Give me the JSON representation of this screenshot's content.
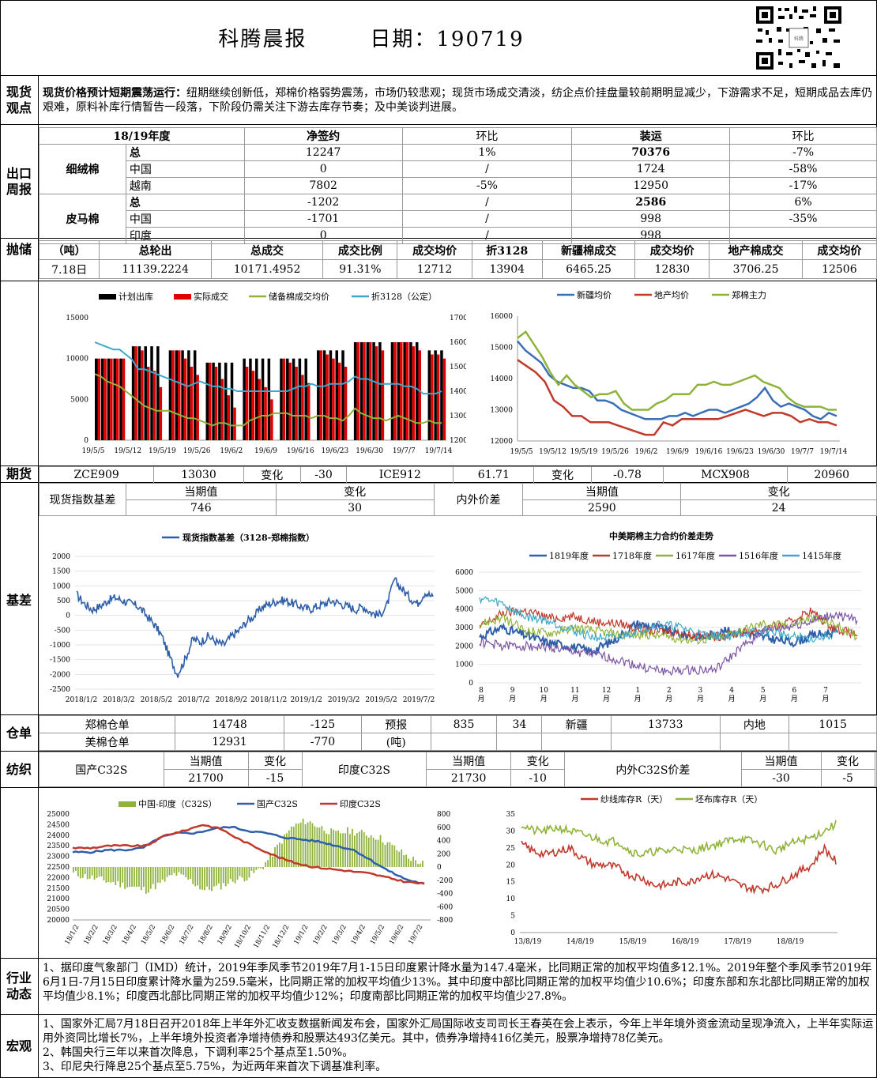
{
  "header": {
    "title": "科腾晨报",
    "date": "日期：190719"
  },
  "sections": {
    "view": "现货\n观点",
    "export": "出口\n周报",
    "reserve": "抛储",
    "futures": "期货",
    "basis": "基差",
    "warrant": "仓单",
    "textile": "纺织",
    "industry": "行业\n动态",
    "macro": "宏观"
  },
  "view": {
    "bold": "现货价格预计短期震荡运行：",
    "text": "纽期继续创新低，郑棉价格弱势震荡，市场仍较悲观；现货市场成交清淡，纺企点价挂盘量较前期明显减少，下游需求不足，短期成品去库仍艰难，原料补库行情暂告一段落，下阶段仍需关注下游去库存节奏；及中美谈判进展。"
  },
  "export": {
    "header": [
      "18/19年度",
      "净签约",
      "环比",
      "装运",
      "环比"
    ],
    "groups": [
      {
        "name": "细绒棉",
        "rows": [
          [
            "总",
            "12247",
            "1%",
            "70376",
            "-7%"
          ],
          [
            "中国",
            "0",
            "/",
            "1724",
            "-58%"
          ],
          [
            "越南",
            "7802",
            "-5%",
            "12950",
            "-17%"
          ]
        ]
      },
      {
        "name": "皮马棉",
        "rows": [
          [
            "总",
            "-1202",
            "/",
            "2586",
            "6%"
          ],
          [
            "中国",
            "-1701",
            "/",
            "998",
            "-35%"
          ],
          [
            "印度",
            "0",
            "/",
            "998",
            ""
          ]
        ]
      }
    ]
  },
  "reserve": {
    "header": [
      "（吨）",
      "总轮出",
      "总成交",
      "成交比例",
      "成交均价",
      "折3128",
      "新疆棉成交",
      "成交均价",
      "地产棉成交",
      "成交均价"
    ],
    "row": [
      "7.18日",
      "11139.2224",
      "10171.4952",
      "91.31%",
      "12712",
      "13904",
      "6465.25",
      "12830",
      "3706.25",
      "12506"
    ]
  },
  "futures": {
    "row1": [
      "ZCE909",
      "13030",
      "变化",
      "-30",
      "ICE912",
      "61.71",
      "变化",
      "-0.78",
      "MCX908",
      "20960"
    ],
    "basis_label": "现货指数基差",
    "cur": "当期值",
    "chg": "变化",
    "basis_val": "746",
    "basis_chg": "30",
    "spread_label": "内外价差",
    "spread_val": "2590",
    "spread_chg": "24"
  },
  "warrant": {
    "r1": [
      "郑棉仓单",
      "14748",
      "-125",
      "预报",
      "835",
      "34",
      "新疆",
      "13733",
      "内地",
      "1015"
    ],
    "r2": [
      "美棉仓单",
      "12931",
      "-770",
      "(吨)"
    ]
  },
  "textile": {
    "dom": "国产C32S",
    "cur": "当期值",
    "chg": "变化",
    "dom_val": "21700",
    "dom_chg": "-15",
    "ind": "印度C32S",
    "ind_val": "21730",
    "ind_chg": "-10",
    "spread": "内外C32S价差",
    "sp_val": "-30",
    "sp_chg": "-5"
  },
  "industry": "1、据印度气象部门（IMD）统计，2019年季风季节2019年7月1-15日印度累计降水量为147.4毫米，比同期正常的加权平均值多12.1%。2019年整个季风季节2019年6月1日-7月15日印度累计降水量为259.5毫米，比同期正常的加权平均值少13%。其中印度中部比同期正常的加权平均值少10.6%；印度东部和东北部比同期正常的加权平均值少8.1%；印度西北部比同期正常的加权平均值少12%；印度南部比同期正常的加权平均值少27.8%。",
  "macro": [
    "1、国家外汇局7月18日召开2018年上半年外汇收支数据新闻发布会，国家外汇局国际收支司司长王春英在会上表示，今年上半年境外资金流动呈现净流入，上半年实际运用外资同比增长7%，上半年境外投资者净增持债券和股票达493亿美元。其中，债券净增持416亿美元，股票净增持78亿美元。",
    "2、韩国央行三年以来首次降息，下调利率25个基点至1.50%。",
    "3、印尼央行降息25个基点至5.75%，为近两年来首次下调基准利率。"
  ],
  "chart_data": [
    {
      "type": "bar",
      "legend": [
        "计划出库",
        "实际成交",
        "储备棉成交均价",
        "折3128（公定）"
      ],
      "colors": [
        "#000000",
        "#e00000",
        "#8fb33a",
        "#3fa8c8"
      ],
      "x_ticks": [
        "19/5/5",
        "19/5/12",
        "19/5/19",
        "19/5/26",
        "19/6/2",
        "19/6/9",
        "19/6/16",
        "19/6/23",
        "19/6/30",
        "19/7/7",
        "19/7/14"
      ],
      "ylim": [
        0,
        15000
      ],
      "y_ticks": [
        "0",
        "5000",
        "10000",
        "15000"
      ],
      "y2lim": [
        12000,
        17000
      ],
      "y2_ticks": [
        "12000",
        "13000",
        "14000",
        "15000",
        "16000",
        "17000"
      ],
      "planned": [
        10000,
        10000,
        10000,
        10000,
        10000,
        0,
        11500,
        11500,
        11500,
        11500,
        11500,
        0,
        11000,
        11000,
        11000,
        11000,
        11000,
        0,
        9500,
        9500,
        9500,
        9500,
        9500,
        0,
        10000,
        10000,
        10000,
        10000,
        10000,
        0,
        10000,
        10000,
        10000,
        10000,
        10000,
        0,
        11000,
        11000,
        11000,
        11000,
        11000,
        0,
        12000,
        12000,
        12000,
        12000,
        12000,
        0,
        12000,
        12000,
        12000,
        12000,
        12000,
        0,
        11000,
        11000,
        11000
      ],
      "actual": [
        10000,
        10000,
        10000,
        10000,
        10000,
        0,
        11500,
        11000,
        9000,
        8500,
        6500,
        0,
        11000,
        11000,
        10000,
        9000,
        8000,
        0,
        9500,
        9000,
        7500,
        5500,
        4000,
        0,
        9000,
        8500,
        7500,
        6500,
        5000,
        0,
        10000,
        9500,
        9000,
        8000,
        7000,
        0,
        11000,
        10500,
        10000,
        9500,
        9000,
        0,
        12000,
        12000,
        12000,
        11500,
        11000,
        0,
        12000,
        12000,
        12000,
        11500,
        11000,
        0,
        10500,
        10500,
        10000
      ],
      "reserve_avg": [
        14700,
        14600,
        14400,
        14300,
        14200,
        14000,
        13800,
        13600,
        13400,
        13300,
        13200,
        13200,
        13200,
        13100,
        13000,
        12900,
        12900,
        12800,
        12700,
        12600,
        12700,
        12700,
        12600,
        12600,
        12600,
        12800,
        12900,
        13000,
        13000,
        13100,
        13100,
        13100,
        13000,
        13000,
        13000,
        12900,
        13000,
        13000,
        12900,
        12900,
        12800,
        13000,
        13300,
        13100,
        13000,
        12900,
        12900,
        12800,
        12900,
        13000,
        12900,
        12800,
        12700,
        12700,
        12800,
        12700,
        12700
      ],
      "z3128": [
        16000,
        15900,
        15800,
        15700,
        15700,
        15500,
        15300,
        14900,
        14900,
        14800,
        14700,
        14600,
        14500,
        14400,
        14300,
        14200,
        14300,
        14400,
        14300,
        14200,
        14200,
        14100,
        14100,
        14000,
        14000,
        14000,
        14000,
        14000,
        14000,
        14000,
        14000,
        14000,
        14100,
        14200,
        14200,
        14300,
        14200,
        14200,
        14300,
        14300,
        14300,
        14400,
        14600,
        14500,
        14500,
        14400,
        14300,
        14300,
        14300,
        14300,
        14200,
        14200,
        14100,
        13900,
        13900,
        13900,
        14000
      ]
    },
    {
      "type": "line",
      "series": [
        {
          "name": "新疆均价",
          "color": "#3a6fb5"
        },
        {
          "name": "地产均价",
          "color": "#c0392b"
        },
        {
          "name": "郑棉主力",
          "color": "#8fb33a"
        }
      ],
      "x_ticks": [
        "19/5/5",
        "19/5/12",
        "19/5/19",
        "19/5/26",
        "19/6/2",
        "19/6/9",
        "19/6/16",
        "19/6/23",
        "19/6/30",
        "19/7/7",
        "19/7/14"
      ],
      "ylim": [
        12000,
        16000
      ],
      "y_ticks": [
        "12000",
        "13000",
        "14000",
        "15000",
        "16000"
      ],
      "xj": [
        15200,
        14900,
        14700,
        14500,
        14100,
        13900,
        13800,
        13700,
        13700,
        13600,
        13300,
        13300,
        13200,
        13000,
        12900,
        12800,
        12700,
        12700,
        12700,
        12800,
        12800,
        12900,
        12800,
        12900,
        13000,
        13000,
        12900,
        13000,
        13100,
        13200,
        13400,
        13700,
        13300,
        13100,
        13200,
        13100,
        13000,
        12800,
        12700,
        12900,
        12800
      ],
      "dc": [
        14600,
        14400,
        14200,
        13900,
        13300,
        13100,
        12800,
        12800,
        12600,
        12600,
        12600,
        12500,
        12400,
        12300,
        12200,
        12200,
        12600,
        12500,
        12700,
        12700,
        12700,
        12700,
        12700,
        12800,
        12900,
        13000,
        12900,
        12800,
        12900,
        12900,
        12800,
        12600,
        12700,
        12600,
        12600,
        12500
      ],
      "zm": [
        15300,
        15500,
        15100,
        14700,
        14200,
        13800,
        14100,
        13800,
        13600,
        13400,
        13500,
        13500,
        13600,
        13200,
        13000,
        13000,
        13000,
        13200,
        13300,
        13500,
        13500,
        13500,
        13800,
        13800,
        13900,
        13800,
        13800,
        13900,
        14000,
        14100,
        13900,
        13800,
        13700,
        13400,
        13200,
        13100,
        13100,
        13100,
        13000,
        13000
      ]
    },
    {
      "type": "line",
      "title": "现货指数基差（3128-郑棉指数）",
      "x_ticks": [
        "2018/1/2",
        "2018/3/2",
        "2018/5/2",
        "2018/7/2",
        "2018/9/2",
        "2018/11/2",
        "2019/1/2",
        "2019/3/2",
        "2019/5/2",
        "2019/7/2"
      ],
      "ylim": [
        -2500,
        2000
      ],
      "y_ticks": [
        "-2500",
        "-2000",
        "-1500",
        "-1000",
        "-500",
        "0",
        "500",
        "1000",
        "1500",
        "2000"
      ],
      "values": [
        700,
        400,
        200,
        300,
        500,
        600,
        500,
        400,
        300,
        0,
        -300,
        -700,
        -1400,
        -2000,
        -1500,
        -800,
        -900,
        -700,
        -900,
        -1000,
        -700,
        -500,
        -200,
        0,
        300,
        400,
        500,
        500,
        400,
        300,
        200,
        300,
        400,
        500,
        400,
        300,
        200,
        300,
        100,
        0,
        300,
        1200,
        900,
        600,
        400,
        800,
        600
      ]
    },
    {
      "type": "line",
      "title": "中美期棉主力合约价差走势",
      "series": [
        {
          "name": "1819年度",
          "color": "#2e5fa8"
        },
        {
          "name": "1718年度",
          "color": "#c0392b"
        },
        {
          "name": "1617年度",
          "color": "#8fb33a"
        },
        {
          "name": "1516年度",
          "color": "#7b55a5"
        },
        {
          "name": "1415年度",
          "color": "#3fa8c8"
        }
      ],
      "x_ticks": [
        "8\n月",
        "9\n月",
        "10\n月",
        "11\n月",
        "12\n月",
        "1\n月",
        "2\n月",
        "3\n月",
        "4\n月",
        "5\n月",
        "6\n月",
        "7\n月"
      ],
      "ylim": [
        0,
        6000
      ],
      "y_ticks": [
        "0",
        "1000",
        "2000",
        "3000",
        "4000",
        "5000",
        "6000"
      ]
    },
    {
      "type": "line",
      "legend": [
        "中国-印度（C32S）",
        "国产C32S",
        "印度C32S"
      ],
      "x_ticks": [
        "18/1/2",
        "18/2/2",
        "18/3/2",
        "18/4/2",
        "18/5/2",
        "18/6/2",
        "18/7/2",
        "18/8/2",
        "18/9/2",
        "18/10/2",
        "18/11/2",
        "18/12/2",
        "19/1/2",
        "19/2/2",
        "19/3/2",
        "19/4/2",
        "19/5/2",
        "19/6/2",
        "19/7/2"
      ],
      "ylim": [
        20000,
        25000
      ],
      "y_ticks": [
        "20000",
        "20500",
        "21000",
        "21500",
        "22000",
        "22500",
        "23000",
        "23500",
        "24000",
        "24500",
        "25000"
      ],
      "y2lim": [
        -800,
        800
      ],
      "y2_ticks": [
        "-800",
        "-600",
        "-400",
        "-200",
        "0",
        "200",
        "400",
        "600",
        "800"
      ]
    },
    {
      "type": "line",
      "series": [
        {
          "name": "纱线库存R（天）",
          "color": "#c0392b"
        },
        {
          "name": "坯布库存R（天）",
          "color": "#8fb33a"
        }
      ],
      "x_ticks": [
        "13/8/19",
        "14/8/19",
        "15/8/19",
        "16/8/19",
        "17/8/19",
        "18/8/19"
      ],
      "ylim": [
        0,
        35
      ],
      "y_ticks": [
        "0",
        "5",
        "10",
        "15",
        "20",
        "25",
        "30",
        "35"
      ]
    }
  ]
}
